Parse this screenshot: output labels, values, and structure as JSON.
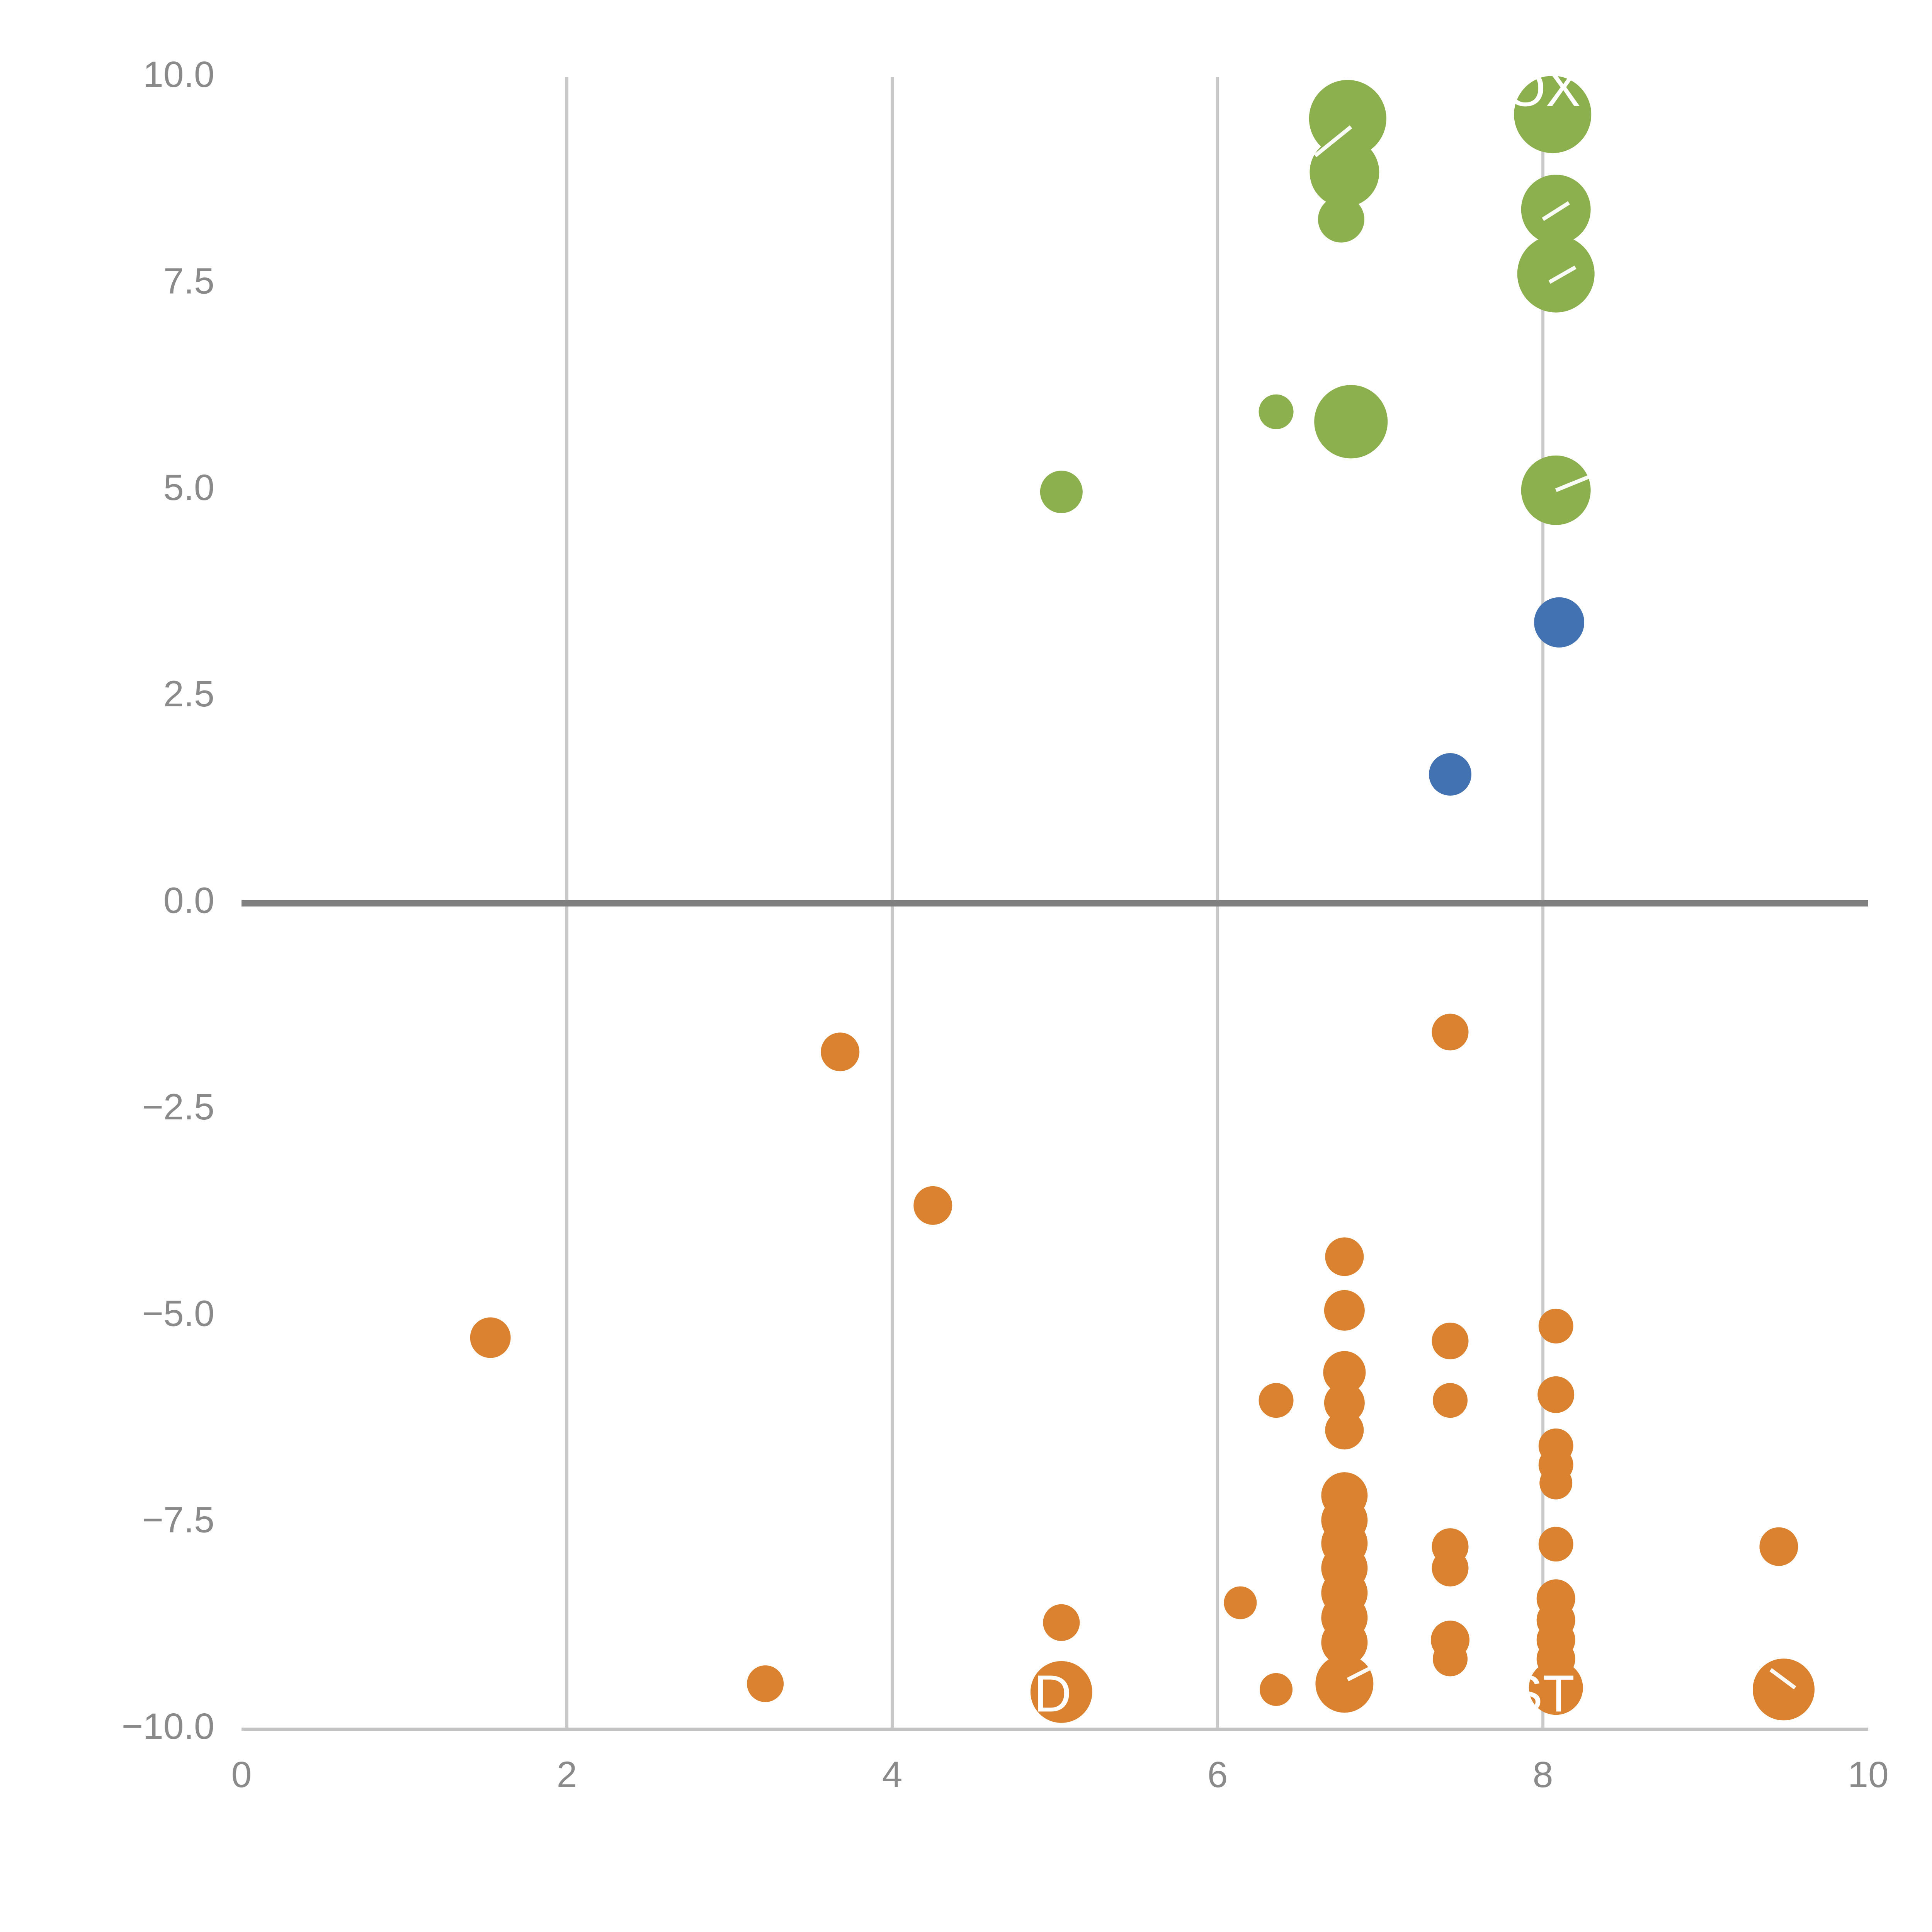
{
  "page": {
    "background": "#ffffff"
  },
  "chart_data": {
    "type": "scatter",
    "title": "",
    "xlabel": "",
    "ylabel": "",
    "xlim": [
      0,
      10
    ],
    "ylim": [
      -10,
      10
    ],
    "grid": "vertical-only",
    "legend": "none",
    "x_ticks": {
      "values": [
        0,
        2,
        4,
        6,
        8,
        10
      ],
      "labels": [
        "0",
        "2",
        "4",
        "6",
        "8",
        "10"
      ]
    },
    "y_ticks": {
      "values": [
        10.0,
        7.5,
        5.0,
        2.5,
        0.0,
        -2.5,
        -5.0,
        -7.5,
        -10.0
      ],
      "labels": [
        "10.0",
        "7.5",
        "5.0",
        "2.5",
        "0.0",
        "−2.5",
        "−5.0",
        "−7.5",
        "−10.0"
      ]
    },
    "gridlines_x": [
      2,
      4,
      6,
      8
    ],
    "zero_line_y": 0,
    "colors": {
      "grid": "#c9c9c9",
      "axis": "#c4c4c4",
      "zero_line": "#808080",
      "tick_label": "#8a8a8a",
      "annotation_text": "#ffffff",
      "green": "#8DB04E",
      "blue": "#4372B2",
      "orange": "#DB8230"
    },
    "series": [
      {
        "name": "green-bubbles",
        "color": "#8DB04E",
        "points": [
          {
            "x": 6.8,
            "y": 9.5,
            "r": 20
          },
          {
            "x": 6.78,
            "y": 8.85,
            "r": 18
          },
          {
            "x": 6.76,
            "y": 8.28,
            "r": 12
          },
          {
            "x": 8.06,
            "y": 9.55,
            "r": 20
          },
          {
            "x": 8.08,
            "y": 8.4,
            "r": 18
          },
          {
            "x": 8.08,
            "y": 7.62,
            "r": 20
          },
          {
            "x": 6.36,
            "y": 5.95,
            "r": 9
          },
          {
            "x": 6.82,
            "y": 5.83,
            "r": 19
          },
          {
            "x": 5.04,
            "y": 4.98,
            "r": 11
          },
          {
            "x": 8.08,
            "y": 5.0,
            "r": 18
          }
        ]
      },
      {
        "name": "blue-bubbles",
        "color": "#4372B2",
        "points": [
          {
            "x": 8.1,
            "y": 3.4,
            "r": 13
          },
          {
            "x": 7.43,
            "y": 1.56,
            "r": 11
          }
        ]
      },
      {
        "name": "orange-bubbles",
        "color": "#DB8230",
        "points": [
          {
            "x": 3.68,
            "y": -1.8,
            "r": 10
          },
          {
            "x": 7.43,
            "y": -1.56,
            "r": 9.5
          },
          {
            "x": 4.25,
            "y": -3.66,
            "r": 10
          },
          {
            "x": 6.78,
            "y": -4.28,
            "r": 10
          },
          {
            "x": 6.78,
            "y": -4.93,
            "r": 10.5
          },
          {
            "x": 1.53,
            "y": -5.26,
            "r": 10.5
          },
          {
            "x": 8.08,
            "y": -5.12,
            "r": 9
          },
          {
            "x": 7.43,
            "y": -5.3,
            "r": 9.5
          },
          {
            "x": 6.78,
            "y": -5.68,
            "r": 11
          },
          {
            "x": 6.36,
            "y": -6.02,
            "r": 9
          },
          {
            "x": 6.78,
            "y": -6.05,
            "r": 10.5
          },
          {
            "x": 7.43,
            "y": -6.02,
            "r": 9
          },
          {
            "x": 8.08,
            "y": -5.95,
            "r": 9.5
          },
          {
            "x": 6.78,
            "y": -6.38,
            "r": 10
          },
          {
            "x": 8.08,
            "y": -6.57,
            "r": 9
          },
          {
            "x": 8.08,
            "y": -6.8,
            "r": 9
          },
          {
            "x": 8.08,
            "y": -7.02,
            "r": 8.5
          },
          {
            "x": 6.78,
            "y": -7.17,
            "r": 12
          },
          {
            "x": 6.78,
            "y": -7.47,
            "r": 12
          },
          {
            "x": 6.78,
            "y": -7.75,
            "r": 12
          },
          {
            "x": 6.78,
            "y": -8.05,
            "r": 12
          },
          {
            "x": 6.78,
            "y": -8.35,
            "r": 12
          },
          {
            "x": 6.78,
            "y": -8.65,
            "r": 12
          },
          {
            "x": 6.78,
            "y": -8.95,
            "r": 12
          },
          {
            "x": 8.08,
            "y": -7.76,
            "r": 9
          },
          {
            "x": 9.45,
            "y": -7.79,
            "r": 10
          },
          {
            "x": 7.43,
            "y": -7.79,
            "r": 9.5
          },
          {
            "x": 7.43,
            "y": -8.05,
            "r": 9.5
          },
          {
            "x": 6.14,
            "y": -8.47,
            "r": 8.5
          },
          {
            "x": 5.04,
            "y": -8.71,
            "r": 9.5
          },
          {
            "x": 7.43,
            "y": -8.92,
            "r": 10
          },
          {
            "x": 7.43,
            "y": -9.15,
            "r": 9
          },
          {
            "x": 8.08,
            "y": -8.42,
            "r": 10
          },
          {
            "x": 8.08,
            "y": -8.68,
            "r": 10
          },
          {
            "x": 8.08,
            "y": -8.92,
            "r": 10
          },
          {
            "x": 8.08,
            "y": -9.15,
            "r": 10
          },
          {
            "x": 3.22,
            "y": -9.45,
            "r": 9.5
          },
          {
            "x": 6.36,
            "y": -9.52,
            "r": 8.5
          },
          {
            "x": 5.04,
            "y": -9.55,
            "r": 16
          },
          {
            "x": 6.78,
            "y": -9.45,
            "r": 15
          },
          {
            "x": 8.08,
            "y": -9.5,
            "r": 14
          },
          {
            "x": 9.48,
            "y": -9.52,
            "r": 16
          }
        ]
      }
    ],
    "annotations": [
      {
        "text": "OX",
        "x": 8.0,
        "y": 9.82
      },
      {
        "text": "AD",
        "x": 4.88,
        "y": -9.62
      },
      {
        "text": "ST",
        "x": 7.99,
        "y": -9.62
      }
    ],
    "leader_lines": [
      {
        "x1": 6.6,
        "y1": 9.05,
        "x2": 6.82,
        "y2": 9.4
      },
      {
        "x1": 8.0,
        "y1": 8.28,
        "x2": 8.16,
        "y2": 8.48
      },
      {
        "x1": 8.04,
        "y1": 7.52,
        "x2": 8.2,
        "y2": 7.7
      },
      {
        "x1": 8.08,
        "y1": 5.0,
        "x2": 8.28,
        "y2": 5.16
      },
      {
        "x1": 6.8,
        "y1": -9.4,
        "x2": 7.0,
        "y2": -9.2
      },
      {
        "x1": 9.4,
        "y1": -9.28,
        "x2": 9.55,
        "y2": -9.5
      }
    ]
  }
}
